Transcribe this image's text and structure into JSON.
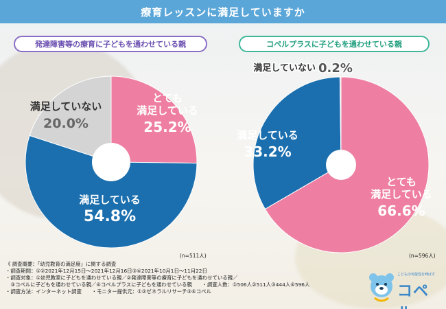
{
  "title": "療育レッスンに満足していますか",
  "left_header": "発達障害等の療育に子どもを通わせている親",
  "right_header": "コペルプラスに子どもを通わせている親",
  "colors": {
    "pink": "#ee7fa3",
    "blue": "#1b6fae",
    "gray": "#d4d4d4",
    "title_bg": "#5aa6d8"
  },
  "chart_data": [
    {
      "type": "pie",
      "title": "発達障害等の療育に子どもを通わせている親",
      "note": "(n=511人)",
      "slices": [
        {
          "label_lines": [
            "とても",
            "満足している"
          ],
          "value": 25.2,
          "value_text": "25.2%",
          "color": "#ee7fa3"
        },
        {
          "label_lines": [
            "満足している"
          ],
          "value": 54.8,
          "value_text": "54.8%",
          "color": "#1b6fae"
        },
        {
          "label_lines": [
            "満足していない"
          ],
          "value": 20.0,
          "value_text": "20.0%",
          "color": "#d4d4d4"
        }
      ]
    },
    {
      "type": "pie",
      "title": "コペルプラスに子どもを通わせている親",
      "note": "(n=596人)",
      "slices": [
        {
          "label_lines": [
            "とても",
            "満足している"
          ],
          "value": 66.6,
          "value_text": "66.6%",
          "color": "#ee7fa3"
        },
        {
          "label_lines": [
            "満足している"
          ],
          "value": 33.2,
          "value_text": "33.2%",
          "color": "#1b6fae"
        },
        {
          "label_lines": [
            "満足していない"
          ],
          "value": 0.2,
          "value_text": "0.2%",
          "color": "#d4d4d4"
        }
      ]
    }
  ],
  "survey_lines": [
    "《 調査概要：「幼児教育の満足度」に関する調査",
    "・調査期間：①②2021年12月15日～2021年12月16日③④2021年10月1日～11月22日",
    "・調査対象：①幼児教室に子どもを通わせている親／②発達障害等の療育に子どもを通わせている親／",
    "　③コペルに子どもを通わせている親／④コペルプラスに子どもを通わせている親　　・調査人数：①506人②511人③444人④596人",
    "・調査方法：インターネット調査　　・モニター提供元：①②ゼネラルリサーチ③④コペル"
  ],
  "logo": {
    "name": "コペル",
    "tagline": "こどもの可能性を伸ばす"
  }
}
